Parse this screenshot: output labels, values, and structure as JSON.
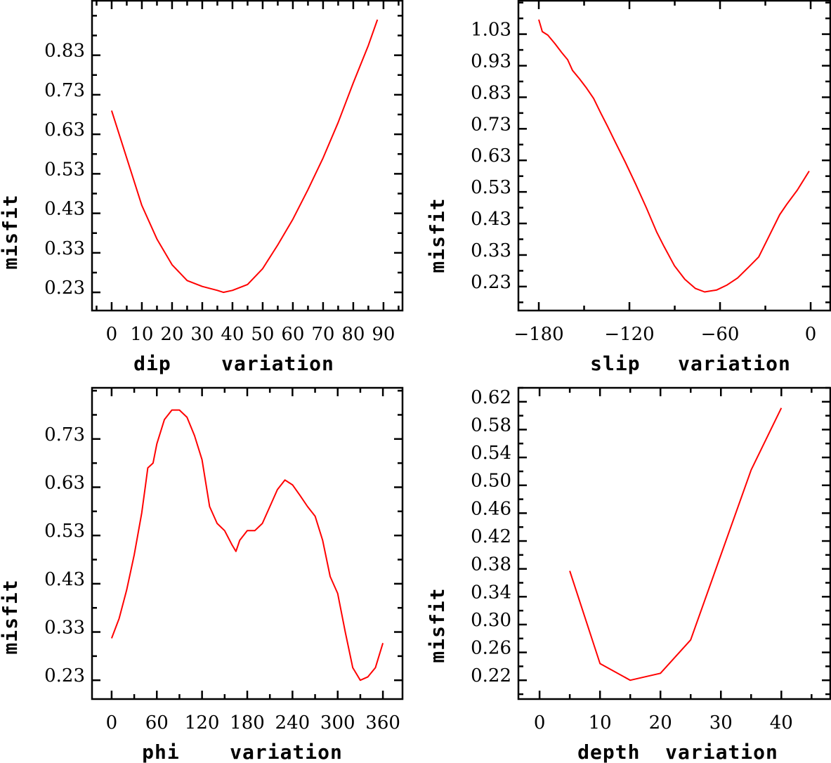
{
  "colors": {
    "curve": "#ff0000",
    "axes": "#000000"
  },
  "chart_data": [
    {
      "type": "line",
      "xlabel": "dip    variation",
      "ylabel": "misfit",
      "xlim": [
        -6.5,
        96.3
      ],
      "ylim": [
        0.184,
        0.968
      ],
      "xticks": [
        0,
        10,
        20,
        30,
        40,
        50,
        60,
        70,
        80,
        90
      ],
      "xtick_labels": [
        "0",
        "10",
        "20",
        "30",
        "40",
        "50",
        "60",
        "70",
        "80",
        "90"
      ],
      "xminor_step": 5,
      "yticks": [
        0.23,
        0.33,
        0.43,
        0.53,
        0.63,
        0.73,
        0.83
      ],
      "ytick_labels": [
        "0.23",
        "0.33",
        "0.43",
        "0.53",
        "0.63",
        "0.73",
        "0.83"
      ],
      "yminor_step": 0.05,
      "x": [
        0,
        5,
        10,
        15,
        20,
        25,
        30,
        35,
        37,
        40,
        45,
        50,
        55,
        60,
        65,
        70,
        75,
        80,
        85,
        88
      ],
      "y": [
        0.69,
        0.57,
        0.45,
        0.365,
        0.3,
        0.26,
        0.245,
        0.235,
        0.23,
        0.235,
        0.25,
        0.29,
        0.35,
        0.415,
        0.49,
        0.57,
        0.66,
        0.76,
        0.855,
        0.92
      ]
    },
    {
      "type": "line",
      "xlabel": "slip   variation",
      "ylabel": "misfit",
      "xlim": [
        -193.5,
        13
      ],
      "ylim": [
        0.154,
        1.136
      ],
      "xticks": [
        -180,
        -120,
        -60,
        0
      ],
      "xtick_labels": [
        "−180",
        "−120",
        "−60",
        "0"
      ],
      "xminor_step": 30,
      "yticks": [
        0.23,
        0.33,
        0.43,
        0.53,
        0.63,
        0.73,
        0.83,
        0.93,
        1.03
      ],
      "ytick_labels": [
        "0.23",
        "0.33",
        "0.43",
        "0.53",
        "0.63",
        "0.73",
        "0.83",
        "0.93",
        "1.03"
      ],
      "yminor_step": 0.05,
      "x": [
        -180,
        -177.7,
        -174,
        -169.3,
        -164.7,
        -160.9,
        -157.7,
        -153,
        -148.4,
        -143.7,
        -139.1,
        -134.4,
        -129.8,
        -122.8,
        -115.8,
        -108.8,
        -101.9,
        -97.2,
        -90.2,
        -83.3,
        -76.3,
        -70.2,
        -62.3,
        -55.3,
        -48.4,
        -41.4,
        -34.4,
        -27.4,
        -20.5,
        -15.8,
        -8.8,
        -1
      ],
      "y": [
        1.076,
        1.038,
        1.027,
        1.0,
        0.971,
        0.949,
        0.915,
        0.888,
        0.859,
        0.826,
        0.781,
        0.737,
        0.692,
        0.625,
        0.554,
        0.48,
        0.402,
        0.358,
        0.296,
        0.253,
        0.224,
        0.213,
        0.219,
        0.235,
        0.257,
        0.29,
        0.324,
        0.391,
        0.458,
        0.491,
        0.536,
        0.596
      ]
    },
    {
      "type": "line",
      "xlabel": "phi    variation",
      "ylabel": "misfit",
      "xlim": [
        -26,
        386
      ],
      "ylim": [
        0.191,
        0.836
      ],
      "xticks": [
        0,
        60,
        120,
        180,
        240,
        300,
        360
      ],
      "xtick_labels": [
        "0",
        "60",
        "120",
        "180",
        "240",
        "300",
        "360"
      ],
      "xminor_step": 30,
      "yticks": [
        0.23,
        0.33,
        0.43,
        0.53,
        0.63,
        0.73
      ],
      "ytick_labels": [
        "0.23",
        "0.33",
        "0.43",
        "0.53",
        "0.63",
        "0.73"
      ],
      "yminor_step": 0.05,
      "x": [
        0,
        10,
        20,
        30,
        40,
        45,
        48,
        55,
        60,
        70,
        80,
        90,
        100,
        110,
        120,
        130,
        140,
        150,
        160,
        165,
        170,
        180,
        190,
        200,
        210,
        220,
        230,
        240,
        250,
        260,
        270,
        280,
        290,
        300,
        310,
        320,
        330,
        340,
        350,
        360
      ],
      "y": [
        0.317,
        0.358,
        0.417,
        0.49,
        0.577,
        0.635,
        0.67,
        0.68,
        0.72,
        0.77,
        0.79,
        0.79,
        0.775,
        0.737,
        0.687,
        0.59,
        0.555,
        0.54,
        0.51,
        0.497,
        0.52,
        0.54,
        0.54,
        0.555,
        0.59,
        0.625,
        0.645,
        0.635,
        0.613,
        0.59,
        0.57,
        0.52,
        0.445,
        0.41,
        0.33,
        0.256,
        0.23,
        0.237,
        0.256,
        0.307
      ]
    },
    {
      "type": "line",
      "xlabel": "depth  variation",
      "ylabel": "misfit",
      "xlim": [
        -3.5,
        48.1
      ],
      "ylim": [
        0.193,
        0.64
      ],
      "xticks": [
        0,
        10,
        20,
        30,
        40
      ],
      "xtick_labels": [
        "0",
        "10",
        "20",
        "30",
        "40"
      ],
      "xminor_step": 5,
      "yticks": [
        0.22,
        0.26,
        0.3,
        0.34,
        0.38,
        0.42,
        0.46,
        0.5,
        0.54,
        0.58,
        0.62
      ],
      "ytick_labels": [
        "0.22",
        "0.26",
        "0.30",
        "0.34",
        "0.38",
        "0.42",
        "0.46",
        "0.50",
        "0.54",
        "0.58",
        "0.62"
      ],
      "yminor_step": 0.02,
      "x": [
        5,
        10,
        15,
        20,
        25,
        35,
        40
      ],
      "y": [
        0.377,
        0.244,
        0.22,
        0.23,
        0.278,
        0.522,
        0.611
      ]
    }
  ]
}
